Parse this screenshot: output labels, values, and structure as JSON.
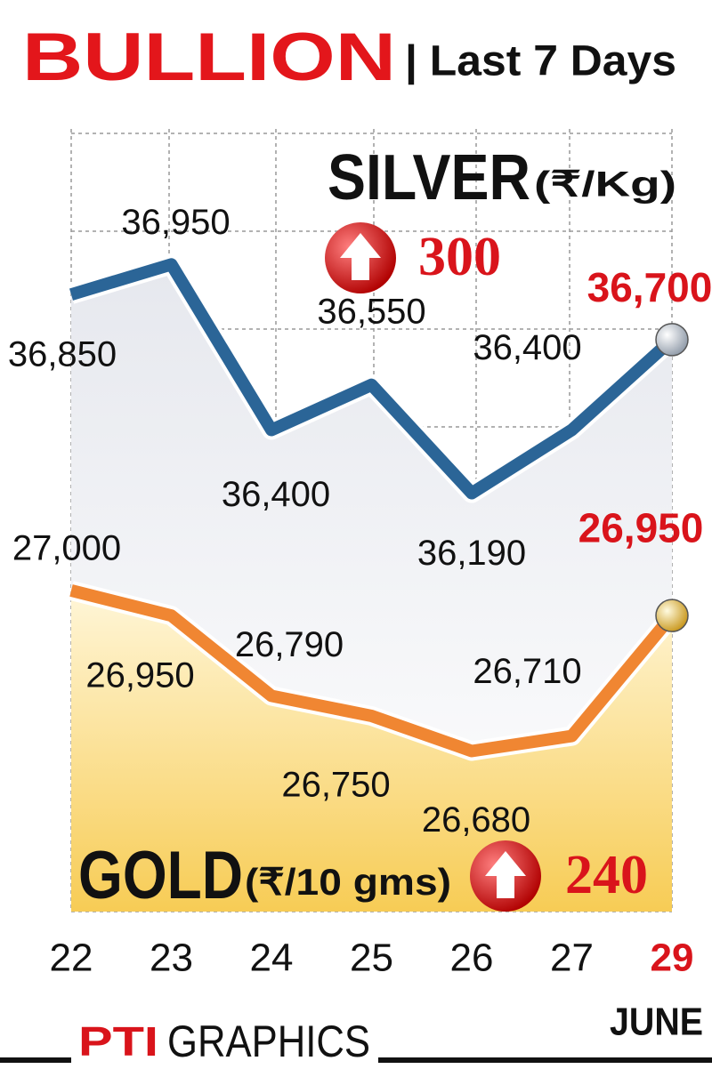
{
  "chart_data": {
    "type": "line",
    "title": "BULLION",
    "subtitle": "| Last 7 Days",
    "categories": [
      "22",
      "23",
      "24",
      "25",
      "26",
      "27",
      "29"
    ],
    "x_label": "JUNE",
    "ylim": [
      34800,
      37400
    ],
    "y2lim": [
      26360,
      27920
    ],
    "series": [
      {
        "name": "SILVER",
        "unit": "(₹/Kg)",
        "change": 300,
        "color": "#2b6597",
        "values": [
          36850,
          36950,
          36400,
          36550,
          36190,
          36400,
          36700
        ],
        "value_labels": [
          "36,850",
          "36,950",
          "36,400",
          "36,550",
          "36,190",
          "36,400",
          "36,700"
        ]
      },
      {
        "name": "GOLD",
        "unit": "(₹/10 gms)",
        "change": 240,
        "color": "#f08632",
        "axis": "y2",
        "values": [
          27000,
          26950,
          26790,
          26750,
          26680,
          26710,
          26950
        ],
        "value_labels": [
          "27,000",
          "26,950",
          "26,790",
          "26,750",
          "26,680",
          "26,710",
          "26,950"
        ]
      }
    ],
    "footer": {
      "logo": "PTI",
      "text": "GRAPHICS"
    }
  }
}
